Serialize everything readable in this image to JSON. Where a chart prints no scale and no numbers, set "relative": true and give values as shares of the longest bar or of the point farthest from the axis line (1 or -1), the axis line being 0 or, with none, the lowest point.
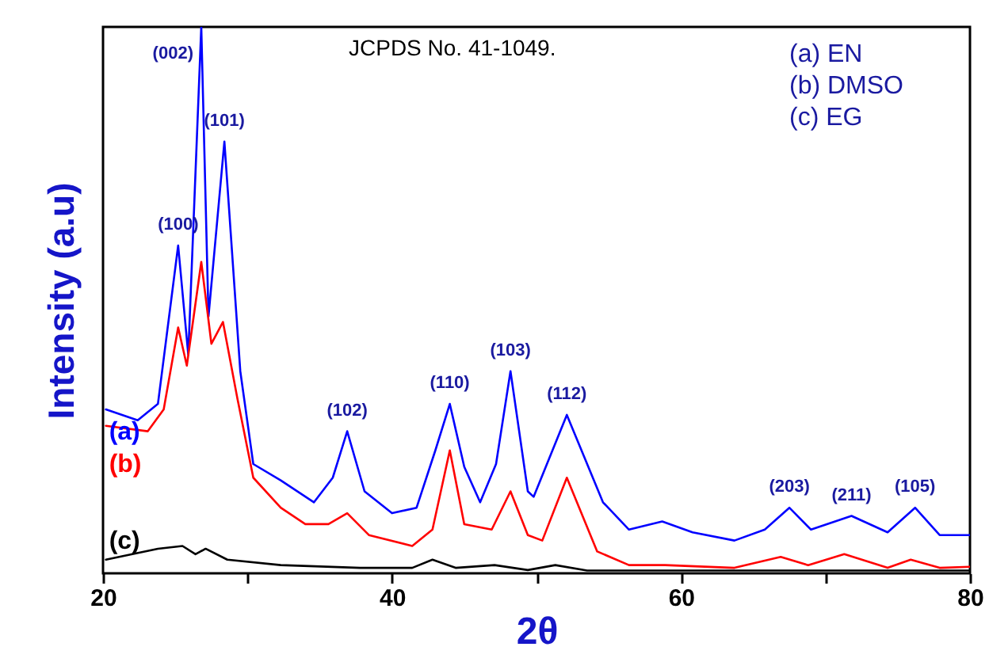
{
  "chart_data": {
    "type": "line",
    "relative": true,
    "xlabel": "2θ",
    "ylabel": "Intensity (a.u)",
    "xlim": [
      20,
      80
    ],
    "xticks": [
      20,
      {
        "value": 30,
        "label": null
      },
      40,
      {
        "value": 50,
        "label": null
      },
      60,
      {
        "value": 70,
        "label": null
      },
      80
    ],
    "series": [
      {
        "name": "(a)",
        "color": "#0000ff",
        "x": [
          20.2,
          22.4,
          23.8,
          25.2,
          25.9,
          26.8,
          27.3,
          28.4,
          29.5,
          30.4,
          32.3,
          34.6,
          35.9,
          36.9,
          38.1,
          40.0,
          41.7,
          43.0,
          44.0,
          45.0,
          46.1,
          47.2,
          48.2,
          49.4,
          49.8,
          52.1,
          54.6,
          56.4,
          58.7,
          60.8,
          63.7,
          65.8,
          67.5,
          69.0,
          71.8,
          74.3,
          76.2,
          77.9,
          80
        ],
        "values": [
          0.3,
          0.28,
          0.31,
          0.6,
          0.4,
          1.0,
          0.47,
          0.79,
          0.37,
          0.2,
          0.17,
          0.13,
          0.175,
          0.26,
          0.15,
          0.11,
          0.12,
          0.225,
          0.31,
          0.195,
          0.13,
          0.2,
          0.37,
          0.15,
          0.14,
          0.29,
          0.13,
          0.08,
          0.095,
          0.075,
          0.06,
          0.08,
          0.12,
          0.08,
          0.105,
          0.075,
          0.12,
          0.07,
          0.07
        ]
      },
      {
        "name": "(b)",
        "color": "#ff0000",
        "x": [
          20.2,
          23.1,
          24.2,
          25.2,
          25.8,
          26.8,
          27.5,
          28.3,
          29.3,
          30.4,
          32.3,
          34.0,
          35.6,
          36.9,
          38.4,
          41.4,
          42.8,
          44.0,
          45.0,
          46.9,
          48.2,
          49.4,
          50.4,
          52.1,
          54.2,
          56.4,
          58.9,
          63.7,
          66.9,
          68.8,
          71.3,
          74.3,
          75.9,
          77.9,
          80
        ],
        "values": [
          0.27,
          0.26,
          0.3,
          0.45,
          0.38,
          0.57,
          0.42,
          0.46,
          0.32,
          0.175,
          0.12,
          0.09,
          0.09,
          0.11,
          0.07,
          0.05,
          0.08,
          0.225,
          0.09,
          0.08,
          0.15,
          0.07,
          0.06,
          0.175,
          0.04,
          0.015,
          0.015,
          0.01,
          0.03,
          0.015,
          0.035,
          0.01,
          0.025,
          0.01,
          0.012
        ]
      },
      {
        "name": "(c)",
        "color": "#000000",
        "x": [
          20.2,
          23.8,
          25.5,
          26.4,
          27.1,
          28.6,
          32.3,
          37.8,
          41.4,
          42.8,
          44.4,
          47.1,
          49.4,
          51.3,
          53.5,
          60,
          70,
          80
        ],
        "values": [
          0.025,
          0.045,
          0.05,
          0.035,
          0.045,
          0.025,
          0.015,
          0.01,
          0.01,
          0.025,
          0.01,
          0.015,
          0.006,
          0.015,
          0.005,
          0.005,
          0.005,
          0.005
        ]
      }
    ],
    "annotations": [
      "JCPDS No. 41-1049.",
      "(a) EN",
      "(b) DMSO",
      "(c) EG",
      {
        "text": "(100)",
        "x": 25.2,
        "y": 0.6
      },
      {
        "text": "(002)",
        "x": 26.8,
        "y": 1.0
      },
      {
        "text": "(101)",
        "x": 28.4,
        "y": 0.79
      },
      {
        "text": "(102)",
        "x": 36.9,
        "y": 0.26
      },
      {
        "text": "(110)",
        "x": 44.0,
        "y": 0.31
      },
      {
        "text": "(103)",
        "x": 48.2,
        "y": 0.37
      },
      {
        "text": "(112)",
        "x": 52.1,
        "y": 0.29
      },
      {
        "text": "(203)",
        "x": 67.5,
        "y": 0.12
      },
      {
        "text": "(211)",
        "x": 71.8,
        "y": 0.105
      },
      {
        "text": "(105)",
        "x": 76.2,
        "y": 0.12
      }
    ]
  }
}
